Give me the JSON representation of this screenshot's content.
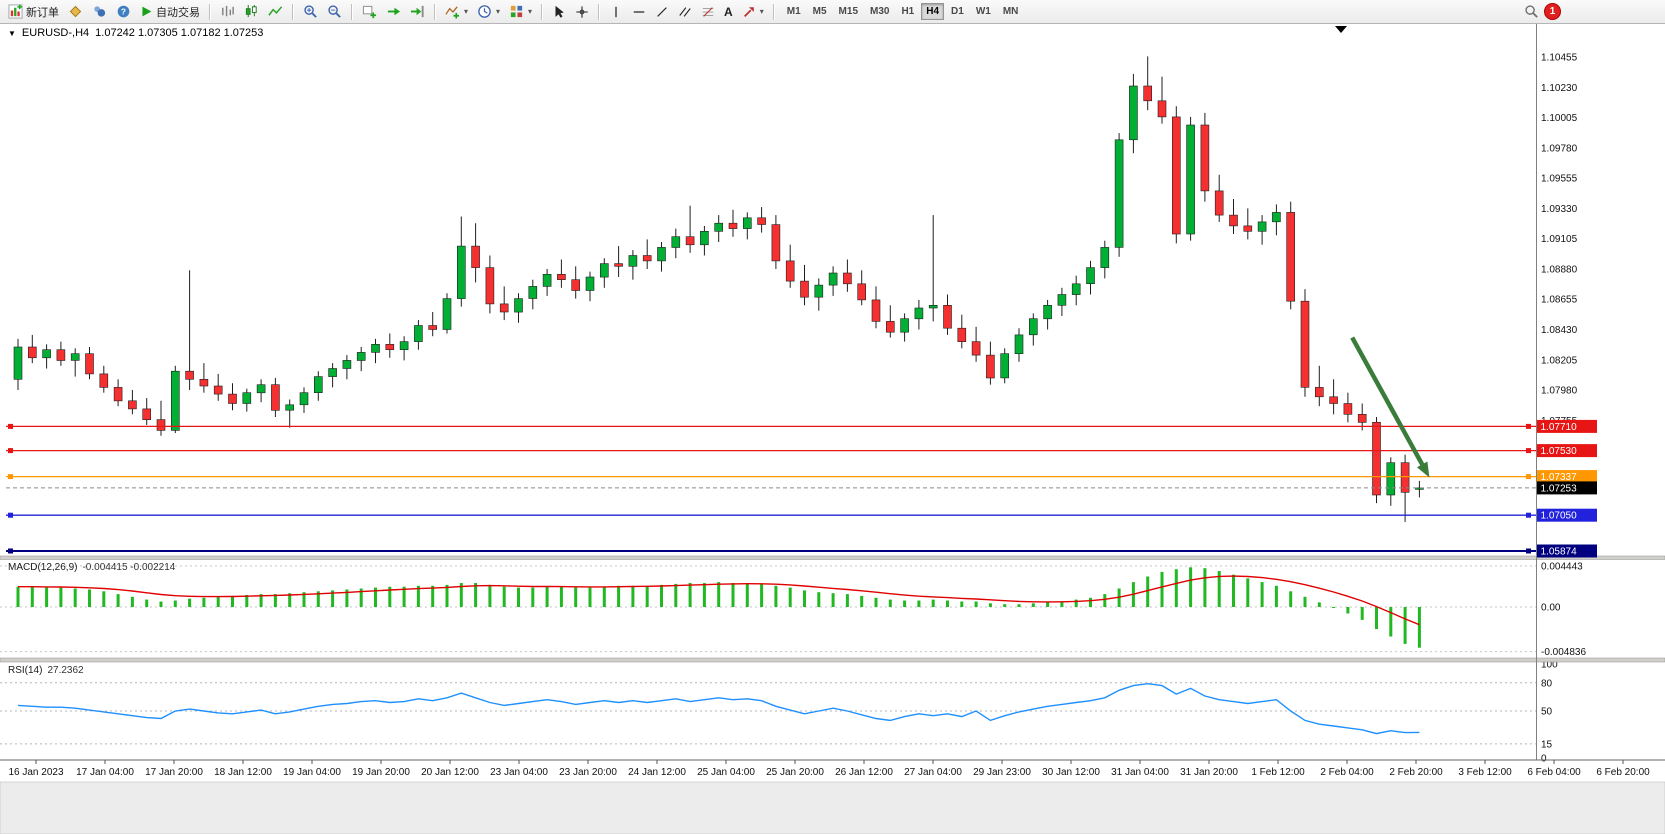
{
  "toolbar": {
    "new_order_label": "新订单",
    "autotrade_label": "自动交易",
    "timeframes": [
      "M1",
      "M5",
      "M15",
      "M30",
      "H1",
      "H4",
      "D1",
      "W1",
      "MN"
    ],
    "active_timeframe": "H4",
    "notification_badge": "1"
  },
  "chart": {
    "symbol_period": "EURUSD-,H4",
    "ohlc_text": "1.07242 1.07305 1.07182 1.07253",
    "price_ticks": [
      "1.10455",
      "1.10230",
      "1.10005",
      "1.09780",
      "1.09555",
      "1.09330",
      "1.09105",
      "1.08880",
      "1.08655",
      "1.08430",
      "1.08205",
      "1.07980",
      "1.07755"
    ],
    "levels": [
      {
        "price": 1.0771,
        "label": "1.07710",
        "color": "#e81515"
      },
      {
        "price": 1.0753,
        "label": "1.07530",
        "color": "#e81515"
      },
      {
        "price": 1.07337,
        "label": "1.07337",
        "color": "#ff9800"
      },
      {
        "price": 1.0705,
        "label": "1.07050",
        "color": "#2222dd"
      },
      {
        "price": 1.05874,
        "label": "1.05874",
        "color": "#000080"
      }
    ],
    "current_price": {
      "price": 1.07253,
      "label": "1.07253",
      "color": "#000000"
    },
    "time_labels": [
      "16 Jan 2023",
      "17 Jan 04:00",
      "17 Jan 20:00",
      "18 Jan 12:00",
      "19 Jan 04:00",
      "19 Jan 20:00",
      "20 Jan 12:00",
      "23 Jan 04:00",
      "23 Jan 20:00",
      "24 Jan 12:00",
      "25 Jan 04:00",
      "25 Jan 20:00",
      "26 Jan 12:00",
      "27 Jan 04:00",
      "29 Jan 23:00",
      "30 Jan 12:00",
      "31 Jan 04:00",
      "31 Jan 20:00",
      "1 Feb 12:00",
      "2 Feb 04:00",
      "2 Feb 20:00",
      "3 Feb 12:00",
      "6 Feb 04:00",
      "6 Feb 20:00"
    ],
    "annotation_arrow": {
      "from_index": 93.3,
      "from_price": 1.0837,
      "to_index": 98.7,
      "to_price": 1.0733,
      "color": "#3a7d3a"
    }
  },
  "macd": {
    "name": "MACD(12,26,9)",
    "values": "-0.004415 -0.002214",
    "axis_labels": [
      "0.004443",
      "0.00",
      "-0.004836"
    ],
    "axis_values": [
      0.004443,
      0,
      -0.004836
    ]
  },
  "rsi": {
    "name": "RSI(14)",
    "value": "27.2362",
    "axis_labels": [
      "100",
      "80",
      "50",
      "15",
      "0"
    ],
    "axis_values": [
      100,
      80,
      50,
      15,
      0
    ],
    "level_values": [
      80,
      50,
      15
    ]
  },
  "colors": {
    "candle_up": "#00af33",
    "candle_down": "#f43030",
    "candle_outline": "#1f1f1f",
    "macd_histogram": "#22b822",
    "macd_signal": "#e00000",
    "rsi_line": "#1e90ff",
    "axis_text": "#111111"
  },
  "chart_data": {
    "type": "candlestick",
    "symbol": "EURUSD-",
    "period": "H4",
    "ohlc_current": {
      "open": 1.07242,
      "high": 1.07305,
      "low": 1.07182,
      "close": 1.07253
    },
    "y_range": [
      1.06754,
      1.10656
    ],
    "candles": [
      [
        1.0806,
        1.0836,
        1.0798,
        1.083
      ],
      [
        1.083,
        1.0839,
        1.0818,
        1.0822
      ],
      [
        1.0822,
        1.0832,
        1.0814,
        1.0828
      ],
      [
        1.0828,
        1.0834,
        1.0816,
        1.082
      ],
      [
        1.082,
        1.0829,
        1.0808,
        1.0825
      ],
      [
        1.0825,
        1.083,
        1.0806,
        1.081
      ],
      [
        1.081,
        1.0816,
        1.0796,
        1.08
      ],
      [
        1.08,
        1.0806,
        1.0786,
        1.079
      ],
      [
        1.079,
        1.0798,
        1.078,
        1.0784
      ],
      [
        1.0784,
        1.0792,
        1.0772,
        1.0776
      ],
      [
        1.0776,
        1.079,
        1.0764,
        1.0768
      ],
      [
        1.0768,
        1.0816,
        1.0766,
        1.0812
      ],
      [
        1.0812,
        1.0887,
        1.0798,
        1.0806
      ],
      [
        1.0806,
        1.0818,
        1.0796,
        1.0801
      ],
      [
        1.0801,
        1.081,
        1.079,
        1.0795
      ],
      [
        1.0795,
        1.0803,
        1.0783,
        1.0788
      ],
      [
        1.0788,
        1.0799,
        1.0782,
        1.0796
      ],
      [
        1.0796,
        1.0806,
        1.0789,
        1.0802
      ],
      [
        1.0802,
        1.0807,
        1.0778,
        1.0783
      ],
      [
        1.0783,
        1.0791,
        1.077,
        1.0787
      ],
      [
        1.0787,
        1.08,
        1.0781,
        1.0796
      ],
      [
        1.0796,
        1.0812,
        1.079,
        1.0808
      ],
      [
        1.0808,
        1.0818,
        1.08,
        1.0814
      ],
      [
        1.0814,
        1.0824,
        1.0806,
        1.082
      ],
      [
        1.082,
        1.083,
        1.0812,
        1.0826
      ],
      [
        1.0826,
        1.0836,
        1.0818,
        1.0832
      ],
      [
        1.0832,
        1.084,
        1.0822,
        1.0828
      ],
      [
        1.0828,
        1.0838,
        1.082,
        1.0834
      ],
      [
        1.0834,
        1.085,
        1.0828,
        1.0846
      ],
      [
        1.0846,
        1.0856,
        1.0838,
        1.0843
      ],
      [
        1.0843,
        1.087,
        1.084,
        1.0866
      ],
      [
        1.0866,
        1.0927,
        1.086,
        1.0905
      ],
      [
        1.0905,
        1.0922,
        1.0878,
        1.0889
      ],
      [
        1.0889,
        1.0898,
        1.0855,
        1.0862
      ],
      [
        1.0862,
        1.0875,
        1.085,
        1.0856
      ],
      [
        1.0856,
        1.087,
        1.0848,
        1.0866
      ],
      [
        1.0866,
        1.088,
        1.0858,
        1.0875
      ],
      [
        1.0875,
        1.0888,
        1.0868,
        1.0884
      ],
      [
        1.0884,
        1.0895,
        1.0874,
        1.088
      ],
      [
        1.088,
        1.089,
        1.0866,
        1.0872
      ],
      [
        1.0872,
        1.0886,
        1.0864,
        1.0882
      ],
      [
        1.0882,
        1.0896,
        1.0874,
        1.0892
      ],
      [
        1.0892,
        1.0905,
        1.0882,
        1.089
      ],
      [
        1.089,
        1.0902,
        1.088,
        1.0898
      ],
      [
        1.0898,
        1.091,
        1.0888,
        1.0894
      ],
      [
        1.0894,
        1.0908,
        1.0886,
        1.0904
      ],
      [
        1.0904,
        1.0918,
        1.0896,
        1.0912
      ],
      [
        1.0912,
        1.0935,
        1.09,
        1.0906
      ],
      [
        1.0906,
        1.092,
        1.0898,
        1.0916
      ],
      [
        1.0916,
        1.0928,
        1.0908,
        1.0922
      ],
      [
        1.0922,
        1.0932,
        1.0912,
        1.0918
      ],
      [
        1.0918,
        1.093,
        1.091,
        1.0926
      ],
      [
        1.0926,
        1.0934,
        1.0915,
        1.0921
      ],
      [
        1.0921,
        1.0928,
        1.0888,
        1.0894
      ],
      [
        1.0894,
        1.0906,
        1.0874,
        1.0879
      ],
      [
        1.0879,
        1.0891,
        1.0861,
        1.0867
      ],
      [
        1.0867,
        1.0881,
        1.0857,
        1.0876
      ],
      [
        1.0876,
        1.089,
        1.0868,
        1.0885
      ],
      [
        1.0885,
        1.0895,
        1.0871,
        1.0877
      ],
      [
        1.0877,
        1.0887,
        1.0861,
        1.0865
      ],
      [
        1.0865,
        1.0875,
        1.0844,
        1.0849
      ],
      [
        1.0849,
        1.0861,
        1.0837,
        1.0841
      ],
      [
        1.0841,
        1.0855,
        1.0834,
        1.0851
      ],
      [
        1.0851,
        1.0865,
        1.0843,
        1.0859
      ],
      [
        1.0859,
        1.0928,
        1.0849,
        1.0861
      ],
      [
        1.0861,
        1.0869,
        1.0839,
        1.0844
      ],
      [
        1.0844,
        1.0854,
        1.0829,
        1.0834
      ],
      [
        1.0834,
        1.0845,
        1.0819,
        1.0824
      ],
      [
        1.0824,
        1.0834,
        1.0802,
        1.0807
      ],
      [
        1.0807,
        1.0829,
        1.0803,
        1.0825
      ],
      [
        1.0825,
        1.0844,
        1.0819,
        1.0839
      ],
      [
        1.0839,
        1.0855,
        1.0831,
        1.0851
      ],
      [
        1.0851,
        1.0865,
        1.0843,
        1.0861
      ],
      [
        1.0861,
        1.0874,
        1.0853,
        1.0869
      ],
      [
        1.0869,
        1.0883,
        1.0861,
        1.0877
      ],
      [
        1.0877,
        1.0894,
        1.0869,
        1.0889
      ],
      [
        1.0889,
        1.0909,
        1.0881,
        1.0904
      ],
      [
        1.0904,
        1.0989,
        1.0897,
        1.0984
      ],
      [
        1.0984,
        1.1033,
        1.0974,
        1.1024
      ],
      [
        1.1024,
        1.1046,
        1.1006,
        1.1013
      ],
      [
        1.1013,
        1.1031,
        1.0996,
        1.1001
      ],
      [
        1.1001,
        1.1009,
        1.0907,
        1.0914
      ],
      [
        1.0914,
        1.1001,
        1.0909,
        1.0995
      ],
      [
        1.0995,
        1.1004,
        1.0938,
        1.0946
      ],
      [
        1.0946,
        1.0958,
        1.0923,
        1.0928
      ],
      [
        1.0928,
        1.094,
        1.0914,
        1.092
      ],
      [
        1.092,
        1.0933,
        1.091,
        1.0916
      ],
      [
        1.0916,
        1.0928,
        1.0906,
        1.0923
      ],
      [
        1.0923,
        1.0936,
        1.0913,
        1.093
      ],
      [
        1.093,
        1.0938,
        1.0858,
        1.0864
      ],
      [
        1.0864,
        1.0873,
        1.0793,
        1.08
      ],
      [
        1.08,
        1.0816,
        1.0786,
        1.0793
      ],
      [
        1.0793,
        1.0806,
        1.078,
        1.0788
      ],
      [
        1.0788,
        1.0796,
        1.0774,
        1.078
      ],
      [
        1.078,
        1.0788,
        1.0768,
        1.0774
      ],
      [
        1.0774,
        1.0778,
        1.0714,
        1.072
      ],
      [
        1.072,
        1.0748,
        1.0712,
        1.0744
      ],
      [
        1.0744,
        1.075,
        1.07,
        1.0722
      ],
      [
        1.07242,
        1.07305,
        1.07182,
        1.07253
      ]
    ],
    "macd_histogram": [
      0.0022,
      0.0022,
      0.0021,
      0.0021,
      0.002,
      0.0019,
      0.0017,
      0.0014,
      0.0011,
      0.0008,
      0.0006,
      0.0007,
      0.0009,
      0.001,
      0.0011,
      0.0012,
      0.0013,
      0.0014,
      0.0014,
      0.0015,
      0.0016,
      0.0017,
      0.0018,
      0.0019,
      0.002,
      0.0021,
      0.0022,
      0.0022,
      0.0023,
      0.0023,
      0.0024,
      0.0026,
      0.0026,
      0.0024,
      0.0022,
      0.0021,
      0.0021,
      0.0022,
      0.0022,
      0.0021,
      0.0021,
      0.0022,
      0.0023,
      0.0023,
      0.0023,
      0.0024,
      0.0025,
      0.0026,
      0.0026,
      0.0027,
      0.0026,
      0.0026,
      0.0025,
      0.0023,
      0.0021,
      0.0018,
      0.0016,
      0.0015,
      0.0014,
      0.0012,
      0.001,
      0.0008,
      0.0007,
      0.0007,
      0.0008,
      0.0007,
      0.0006,
      0.0006,
      0.0004,
      0.0003,
      0.0003,
      0.0004,
      0.0005,
      0.0006,
      0.0008,
      0.001,
      0.0014,
      0.002,
      0.0027,
      0.0033,
      0.0038,
      0.0041,
      0.0043,
      0.0042,
      0.0039,
      0.0035,
      0.0031,
      0.0027,
      0.0023,
      0.0017,
      0.0011,
      0.0005,
      0.0,
      -0.0007,
      -0.0014,
      -0.0024,
      -0.0032,
      -0.004,
      -0.004415
    ],
    "rsi_series": [
      56,
      55,
      54,
      54,
      53,
      51,
      49,
      47,
      45,
      43,
      42,
      50,
      52,
      50,
      48,
      47,
      49,
      51,
      47,
      49,
      52,
      55,
      57,
      58,
      60,
      61,
      59,
      60,
      63,
      61,
      64,
      69,
      64,
      59,
      56,
      58,
      60,
      62,
      60,
      57,
      59,
      61,
      59,
      61,
      59,
      61,
      63,
      60,
      62,
      64,
      62,
      63,
      61,
      55,
      51,
      47,
      50,
      53,
      50,
      46,
      42,
      40,
      44,
      47,
      45,
      47,
      44,
      50,
      40,
      45,
      49,
      52,
      55,
      57,
      59,
      61,
      64,
      72,
      77,
      79,
      77,
      68,
      74,
      66,
      62,
      60,
      58,
      60,
      62,
      50,
      40,
      36,
      34,
      32,
      30,
      26,
      29,
      27,
      27.2362
    ]
  }
}
